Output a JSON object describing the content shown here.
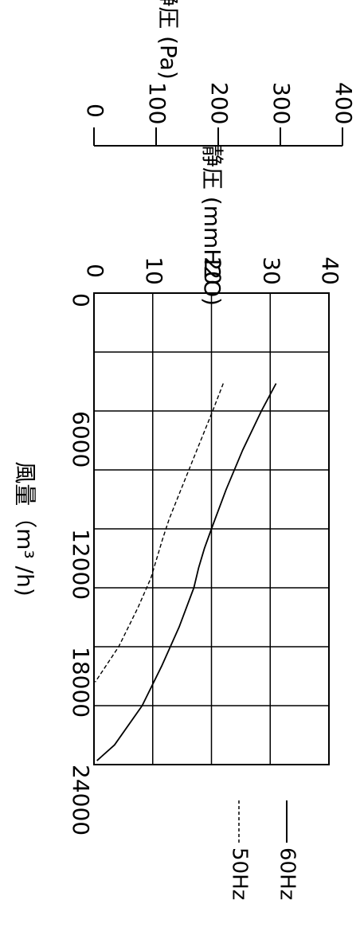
{
  "chart_data": {
    "type": "line",
    "orientation": "rotated-90-clockwise",
    "title": "",
    "xlabel": "風量（m³ /h)",
    "ylabel": "静圧 (mmH2O)",
    "ylabel_secondary": "静圧 (Pa)",
    "xlim": [
      0,
      24000
    ],
    "ylim": [
      0,
      40
    ],
    "ylim_secondary": [
      0,
      400
    ],
    "x_ticks": [
      "0",
      "6000",
      "12000",
      "18000",
      "24000"
    ],
    "y_ticks": [
      "0",
      "10",
      "20",
      "30",
      "40"
    ],
    "y_ticks_secondary": [
      "0",
      "100",
      "200",
      "300",
      "400"
    ],
    "grid": true,
    "legend_position": "bottom",
    "series": [
      {
        "name": "60Hz",
        "line_style": "solid",
        "color": "#000000",
        "x": [
          4600,
          6000,
          8000,
          10000,
          12000,
          13000,
          14000,
          15000,
          17000,
          19000,
          21000,
          23000,
          23800
        ],
        "y": [
          31.0,
          28.5,
          25.3,
          22.5,
          20.0,
          18.8,
          17.8,
          17.0,
          14.5,
          11.5,
          8.2,
          3.5,
          0.5
        ]
      },
      {
        "name": "50Hz",
        "line_style": "dashed",
        "color": "#000000",
        "x": [
          4600,
          6000,
          8000,
          10000,
          11500,
          12500,
          13500,
          14500,
          16000,
          18000,
          19800
        ],
        "y": [
          22.0,
          20.2,
          17.5,
          14.8,
          12.8,
          11.7,
          10.7,
          9.7,
          7.5,
          4.2,
          0.2
        ]
      }
    ]
  }
}
